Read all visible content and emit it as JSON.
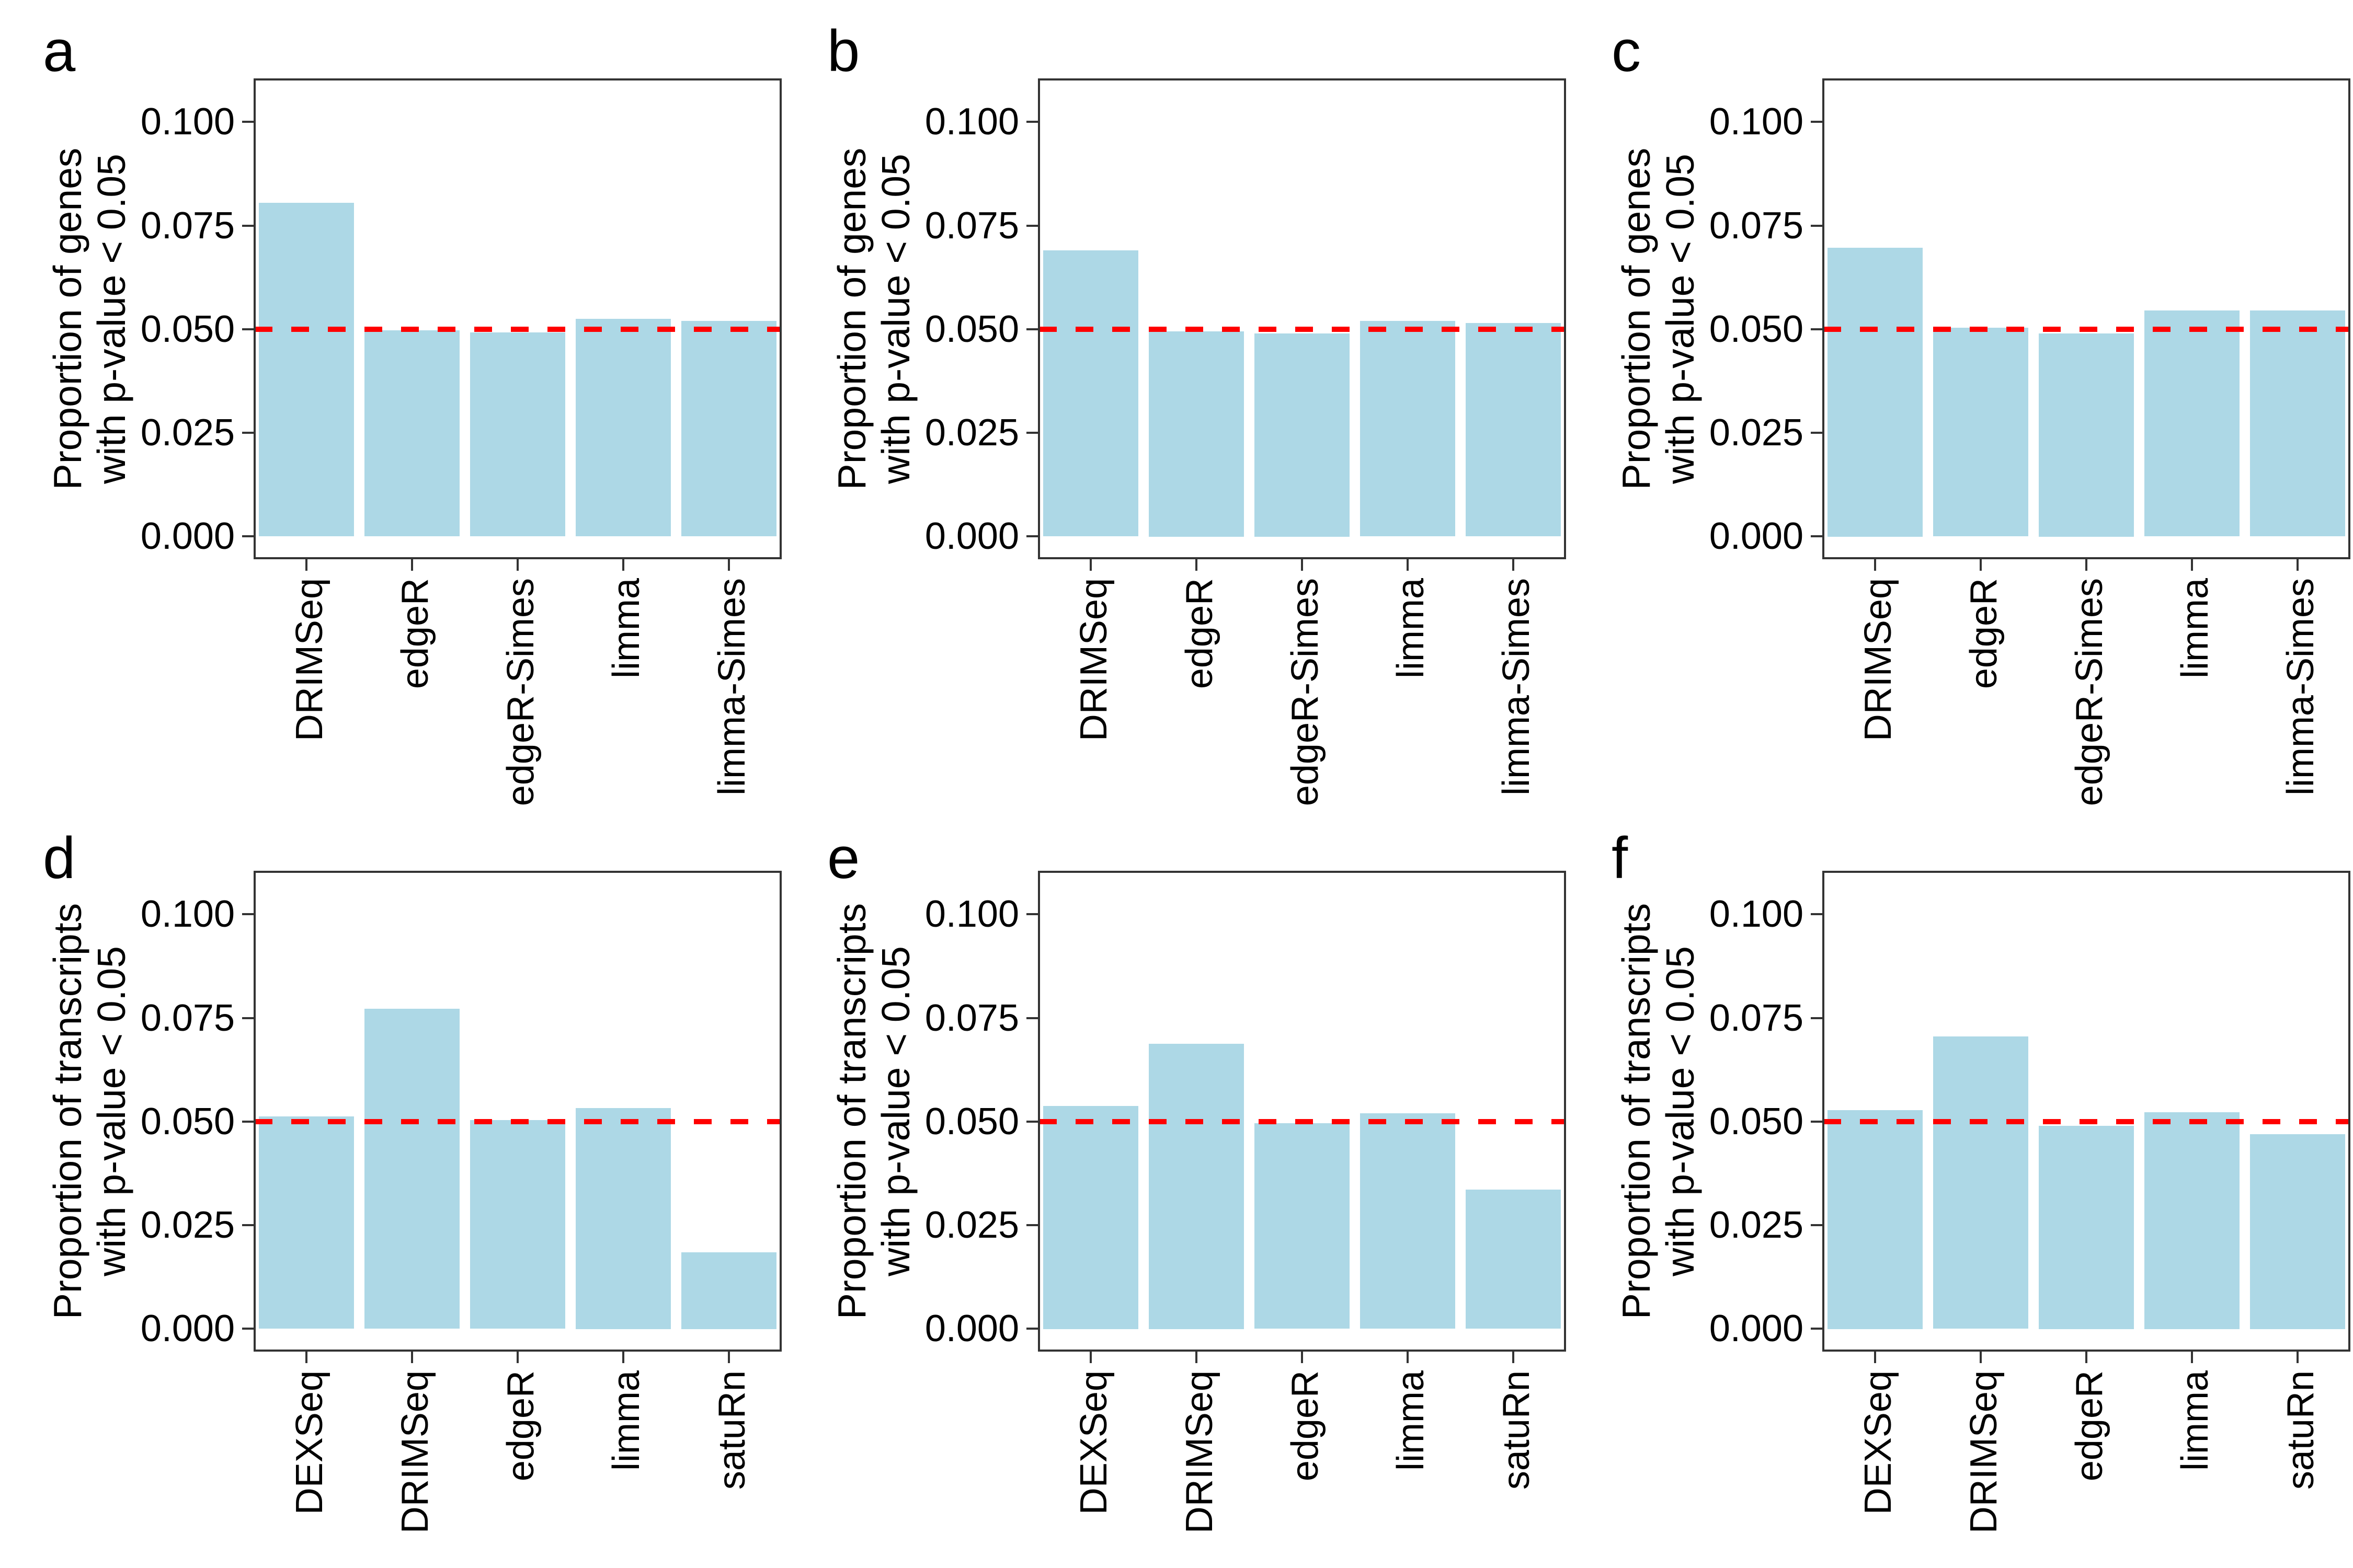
{
  "figure_background": "#ffffff",
  "style": {
    "bar_color": "#ADD8E6",
    "reference_line_color": "#FF0000",
    "axis_color": "#333333",
    "text_color": "#000000"
  },
  "y_axis": {
    "tick_labels": [
      "0.000",
      "0.025",
      "0.050",
      "0.075",
      "0.100"
    ],
    "tick_values": [
      0,
      0.025,
      0.05,
      0.075,
      0.1
    ]
  },
  "chart_data": [
    {
      "type": "bar",
      "title": "a",
      "categories": [
        "DRIMSeq",
        "edgeR",
        "edgeR-Simes",
        "limma",
        "limma-Simes"
      ],
      "values": [
        0.0805,
        0.0497,
        0.0492,
        0.0525,
        0.052
      ],
      "ylabel_line1": "Proportion of genes",
      "ylabel_line2": "with p-value < 0.05",
      "xlabel": "",
      "ylim": [
        0,
        0.11
      ],
      "reference_line": 0.05,
      "grid": "off",
      "legend": "none"
    },
    {
      "type": "bar",
      "title": "b",
      "categories": [
        "DRIMSeq",
        "edgeR",
        "edgeR-Simes",
        "limma",
        "limma-Simes"
      ],
      "values": [
        0.069,
        0.0495,
        0.049,
        0.052,
        0.0515
      ],
      "ylabel_line1": "Proportion of genes",
      "ylabel_line2": "with p-value < 0.05",
      "xlabel": "",
      "ylim": [
        0,
        0.11
      ],
      "reference_line": 0.05,
      "grid": "off",
      "legend": "none"
    },
    {
      "type": "bar",
      "title": "c",
      "categories": [
        "DRIMSeq",
        "edgeR",
        "edgeR-Simes",
        "limma",
        "limma-Simes"
      ],
      "values": [
        0.0697,
        0.0503,
        0.049,
        0.0545,
        0.0545
      ],
      "ylabel_line1": "Proportion of genes",
      "ylabel_line2": "with p-value < 0.05",
      "xlabel": "",
      "ylim": [
        0,
        0.11
      ],
      "reference_line": 0.05,
      "grid": "off",
      "legend": "none"
    },
    {
      "type": "bar",
      "title": "d",
      "categories": [
        "DEXSeq",
        "DRIMSeq",
        "edgeR",
        "limma",
        "satuRn"
      ],
      "values": [
        0.0512,
        0.0772,
        0.0503,
        0.0533,
        0.0185
      ],
      "ylabel_line1": "Proportion of transcripts",
      "ylabel_line2": "with p-value < 0.05",
      "xlabel": "",
      "ylim": [
        0,
        0.11
      ],
      "reference_line": 0.05,
      "grid": "off",
      "legend": "none"
    },
    {
      "type": "bar",
      "title": "e",
      "categories": [
        "DEXSeq",
        "DRIMSeq",
        "edgeR",
        "limma",
        "satuRn"
      ],
      "values": [
        0.0538,
        0.0688,
        0.0496,
        0.052,
        0.0336
      ],
      "ylabel_line1": "Proportion of transcripts",
      "ylabel_line2": "with p-value < 0.05",
      "xlabel": "",
      "ylim": [
        0,
        0.11
      ],
      "reference_line": 0.05,
      "grid": "off",
      "legend": "none"
    },
    {
      "type": "bar",
      "title": "f",
      "categories": [
        "DEXSeq",
        "DRIMSeq",
        "edgeR",
        "limma",
        "satuRn"
      ],
      "values": [
        0.0528,
        0.0705,
        0.049,
        0.0523,
        0.047
      ],
      "ylabel_line1": "Proportion of transcripts",
      "ylabel_line2": "with p-value < 0.05",
      "xlabel": "",
      "ylim": [
        0,
        0.11
      ],
      "reference_line": 0.05,
      "grid": "off",
      "legend": "none"
    }
  ]
}
